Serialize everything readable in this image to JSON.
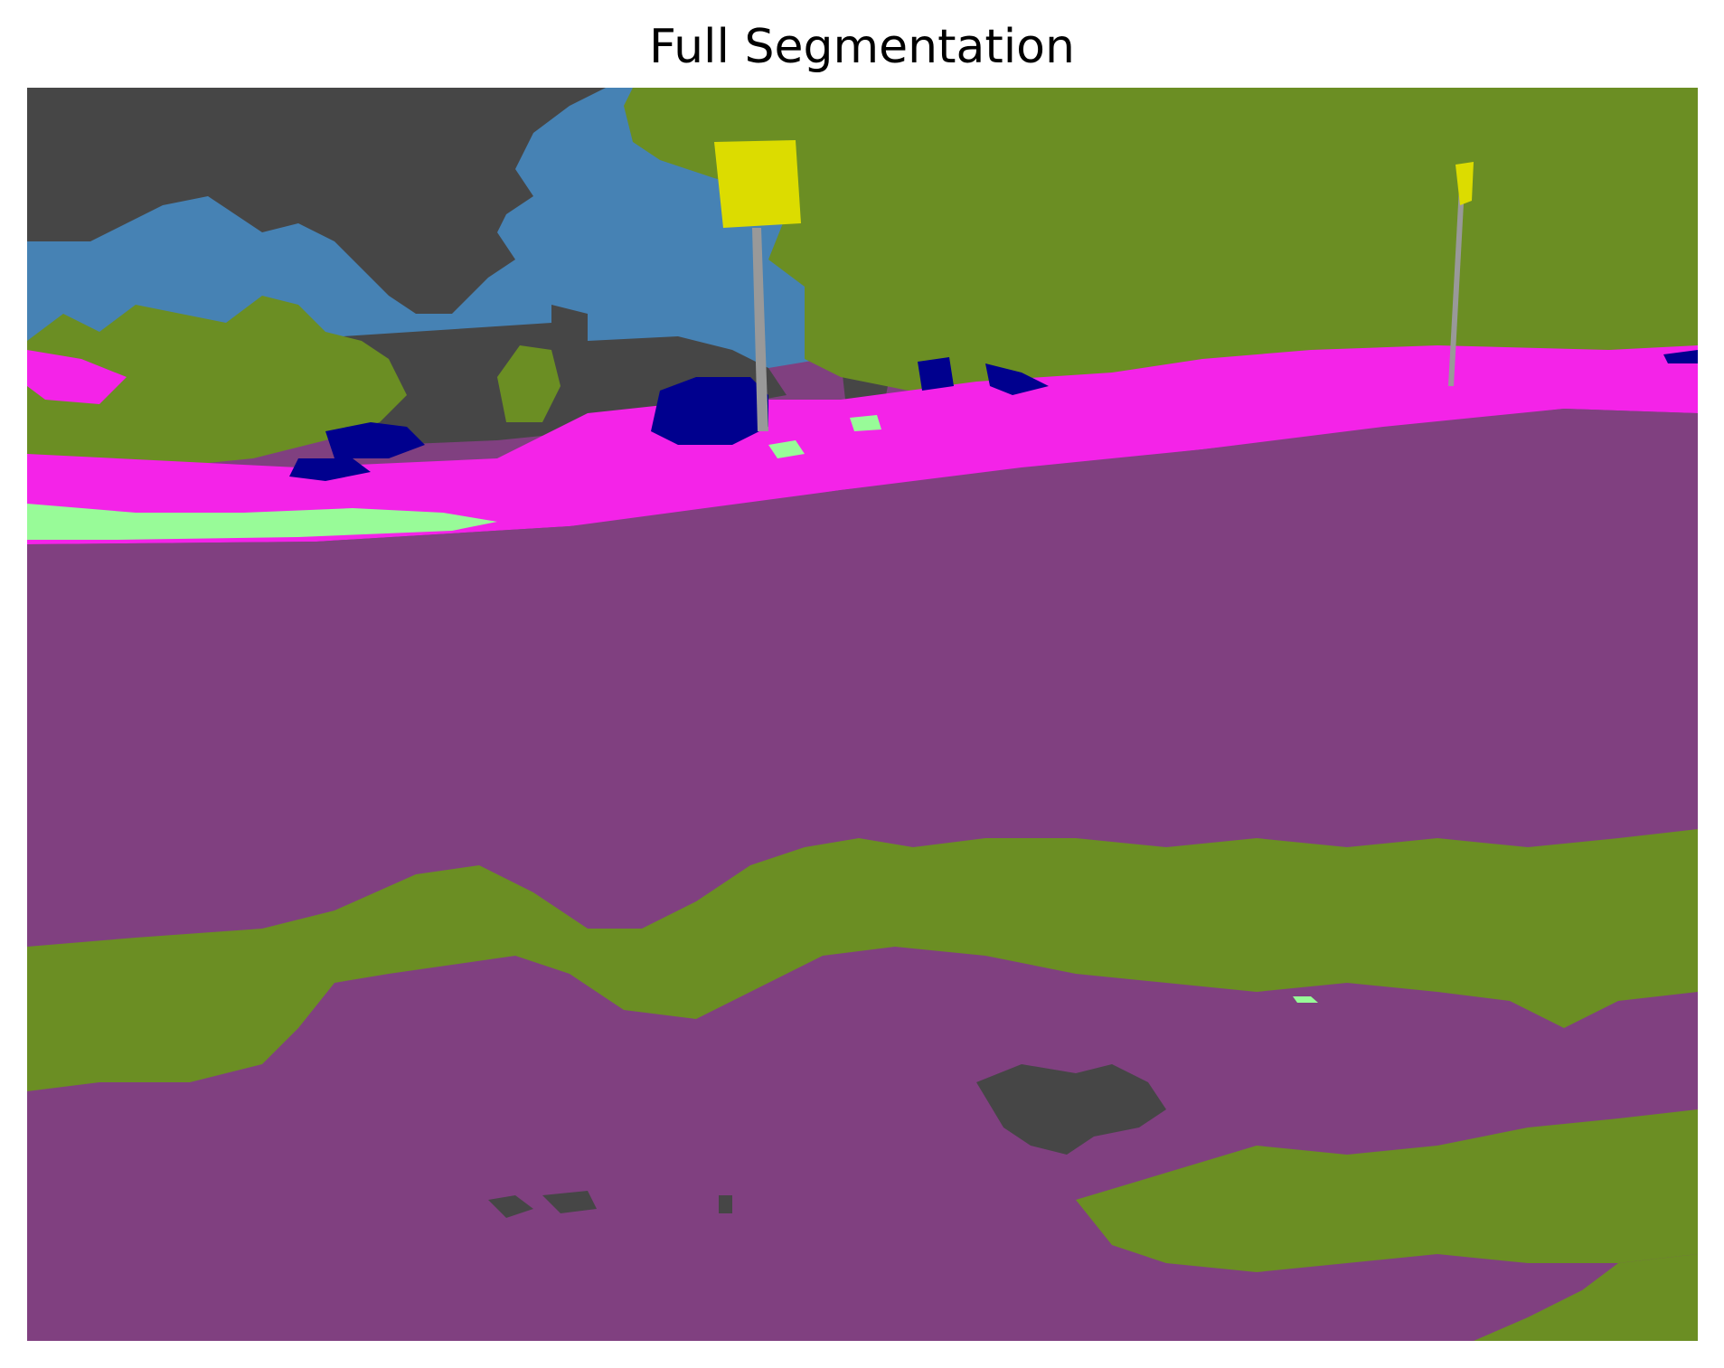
{
  "figure": {
    "title": "Full Segmentation"
  },
  "segmentation": {
    "classes": [
      {
        "id": "sky",
        "color": "#4682B4"
      },
      {
        "id": "building",
        "color": "#464646"
      },
      {
        "id": "vegetation",
        "color": "#6B8E23"
      },
      {
        "id": "road",
        "color": "#804080"
      },
      {
        "id": "sidewalk",
        "color": "#F423E8"
      },
      {
        "id": "car",
        "color": "#00008E"
      },
      {
        "id": "traffic-sign",
        "color": "#DCDC00"
      },
      {
        "id": "pole",
        "color": "#999999"
      },
      {
        "id": "terrain",
        "color": "#98FB98"
      }
    ]
  }
}
